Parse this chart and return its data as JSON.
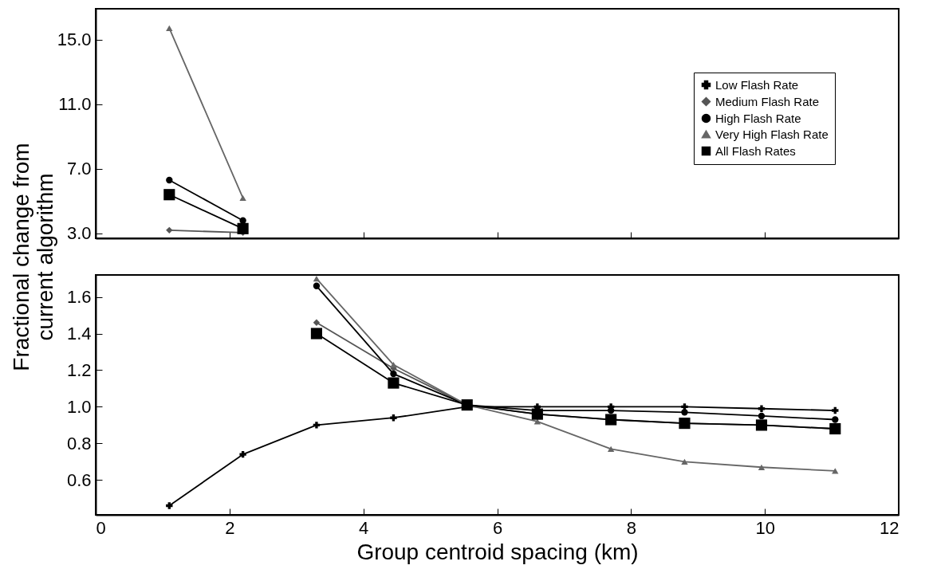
{
  "chart_data": [
    {
      "type": "line",
      "x": [
        1.1,
        2.2
      ],
      "xlim": [
        0,
        12
      ],
      "xticks": [
        0,
        2,
        4,
        6,
        8,
        10,
        12
      ],
      "ylim": [
        2.7,
        16.9
      ],
      "yticks": [
        {
          "value": 3.0,
          "label": "3.0"
        },
        {
          "value": 7.0,
          "label": "7.0"
        },
        {
          "value": 11.0,
          "label": "11.0"
        },
        {
          "value": 15.0,
          "label": "15.0"
        }
      ],
      "tick_labels": "y",
      "legend": "top right",
      "grid": false,
      "series": [
        {
          "name": "Low Flash Rate",
          "color": "#000000",
          "marker": "cross",
          "values": [
            null,
            null
          ]
        },
        {
          "name": "Medium Flash Rate",
          "color": "#555555",
          "marker": "diamond",
          "values": [
            3.2,
            3.05
          ]
        },
        {
          "name": "High Flash Rate",
          "color": "#000000",
          "marker": "circle",
          "values": [
            6.3,
            3.8
          ]
        },
        {
          "name": "Very High Flash Rate",
          "color": "#666666",
          "marker": "triangle",
          "values": [
            15.7,
            5.2
          ]
        },
        {
          "name": "All Flash Rates",
          "color": "#000000",
          "marker": "square",
          "values": [
            5.4,
            3.3
          ]
        }
      ]
    },
    {
      "type": "line",
      "xlabel": "Group centroid spacing (km)",
      "ylabel": "Fractional change from\ncurrent algorithm",
      "x": [
        1.1,
        2.2,
        3.3,
        4.45,
        5.55,
        6.6,
        7.7,
        8.8,
        9.95,
        11.05
      ],
      "xlim": [
        0,
        12
      ],
      "xticks": [
        0,
        2,
        4,
        6,
        8,
        10,
        12
      ],
      "ylim": [
        0.41,
        1.72
      ],
      "yticks": [
        0.6,
        0.8,
        {
          "value": 1.0,
          "label": "1.0"
        },
        1.2,
        1.4,
        1.6
      ],
      "grid": false,
      "series": [
        {
          "color": "#000000",
          "marker": "cross",
          "values": [
            0.46,
            0.74,
            0.9,
            0.94,
            1.0,
            1.0,
            1.0,
            1.0,
            0.99,
            0.98
          ]
        },
        {
          "color": "#555555",
          "marker": "diamond",
          "values": [
            null,
            null,
            1.46,
            1.21,
            1.01,
            0.96,
            0.93,
            0.91,
            0.9,
            0.88
          ]
        },
        {
          "color": "#000000",
          "marker": "circle",
          "values": [
            null,
            null,
            1.66,
            1.18,
            1.01,
            0.98,
            0.98,
            0.97,
            0.95,
            0.93
          ]
        },
        {
          "color": "#666666",
          "marker": "triangle",
          "values": [
            null,
            null,
            1.7,
            1.23,
            1.01,
            0.92,
            0.77,
            0.7,
            0.67,
            0.65
          ]
        },
        {
          "color": "#000000",
          "marker": "square",
          "values": [
            null,
            null,
            1.4,
            1.13,
            1.01,
            0.96,
            0.93,
            0.91,
            0.9,
            0.88
          ]
        }
      ]
    }
  ]
}
